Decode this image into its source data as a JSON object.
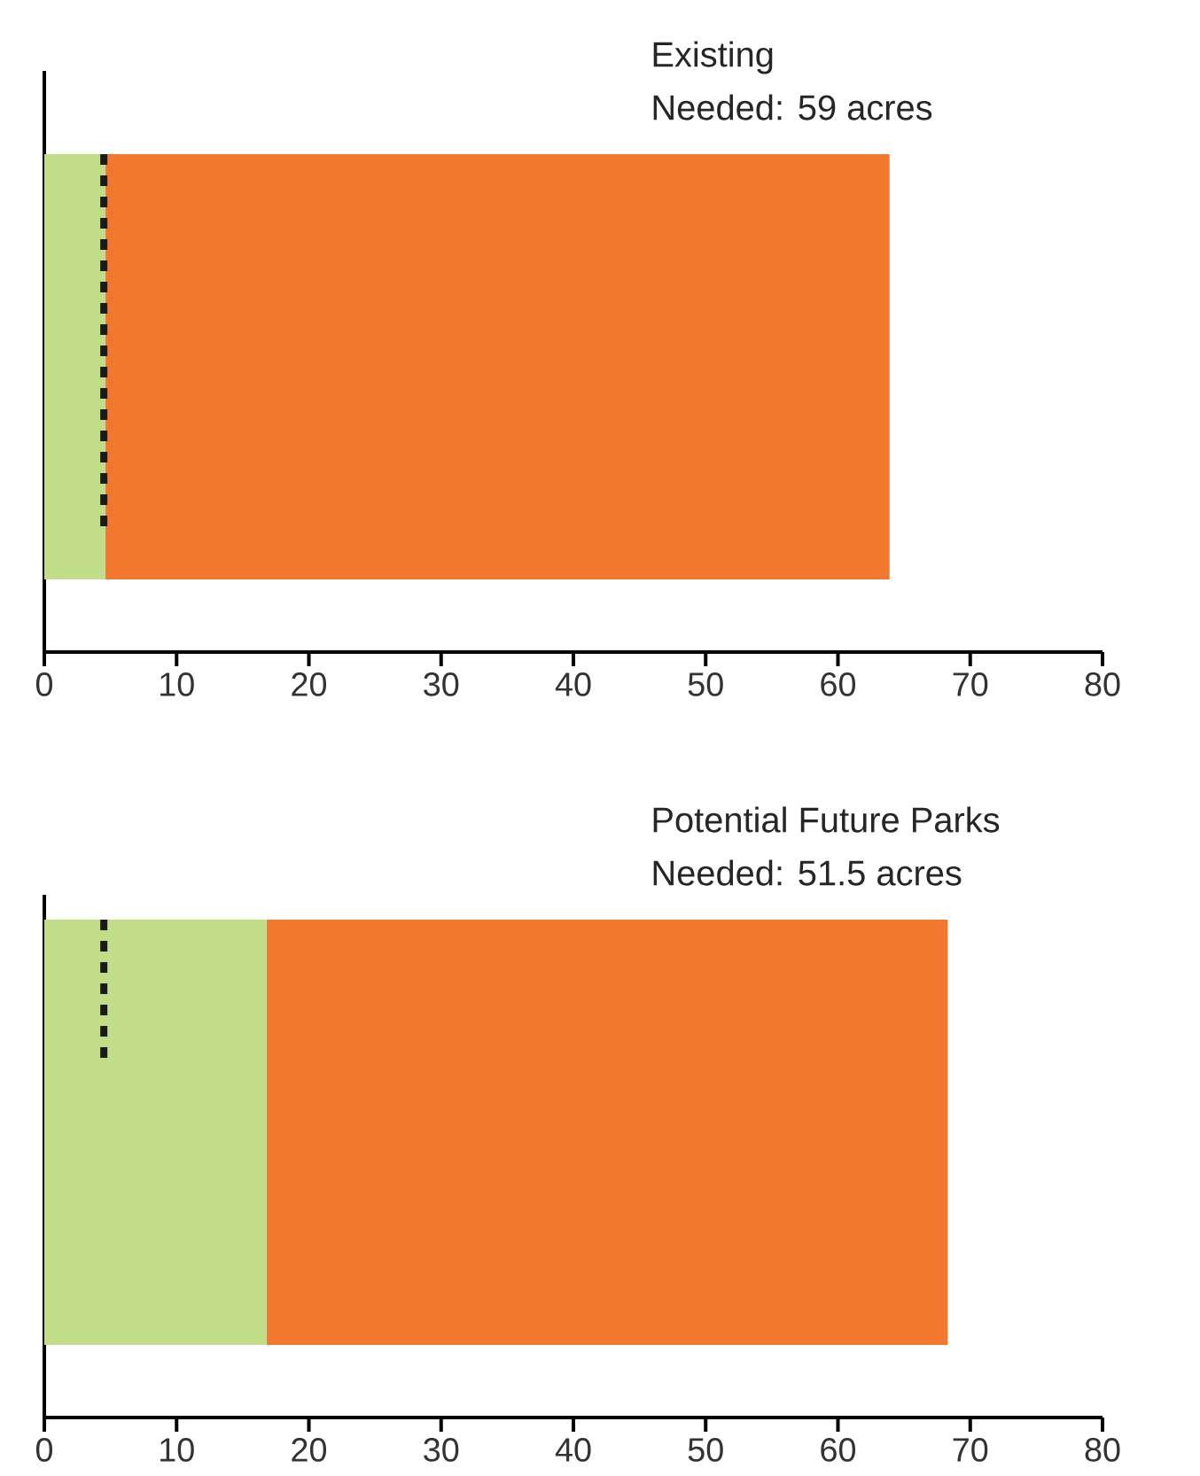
{
  "chart_data": [
    {
      "type": "bar",
      "orientation": "horizontal",
      "stacked": true,
      "categories": [
        null
      ],
      "series": [
        {
          "color": "#c2dd87",
          "values": [
            4.6
          ]
        },
        {
          "color": "#f2782e",
          "values": [
            59.3
          ]
        }
      ],
      "annotations": [
        "Existing",
        "Needed: 59 acres"
      ],
      "xlim": [
        0,
        80
      ],
      "xticks": [
        0,
        10,
        20,
        30,
        40,
        50,
        60,
        70,
        80
      ],
      "ref_lines": [
        {
          "axis": "x",
          "value": 4.5,
          "color": "#1a1a1a",
          "line_style": "dotted"
        }
      ]
    },
    {
      "type": "bar",
      "orientation": "horizontal",
      "stacked": true,
      "categories": [
        null
      ],
      "series": [
        {
          "color": "#c2dd87",
          "values": [
            16.8
          ]
        },
        {
          "color": "#f2782e",
          "values": [
            51.5
          ]
        }
      ],
      "annotations": [
        "Potential Future Parks",
        "Needed: 51.5 acres"
      ],
      "xlim": [
        0,
        80
      ],
      "xticks": [
        0,
        10,
        20,
        30,
        40,
        50,
        60,
        70,
        80
      ],
      "ref_lines": [
        {
          "axis": "x",
          "value": 4.5,
          "color": "#1a1a1a",
          "line_style": "dotted"
        }
      ]
    }
  ]
}
